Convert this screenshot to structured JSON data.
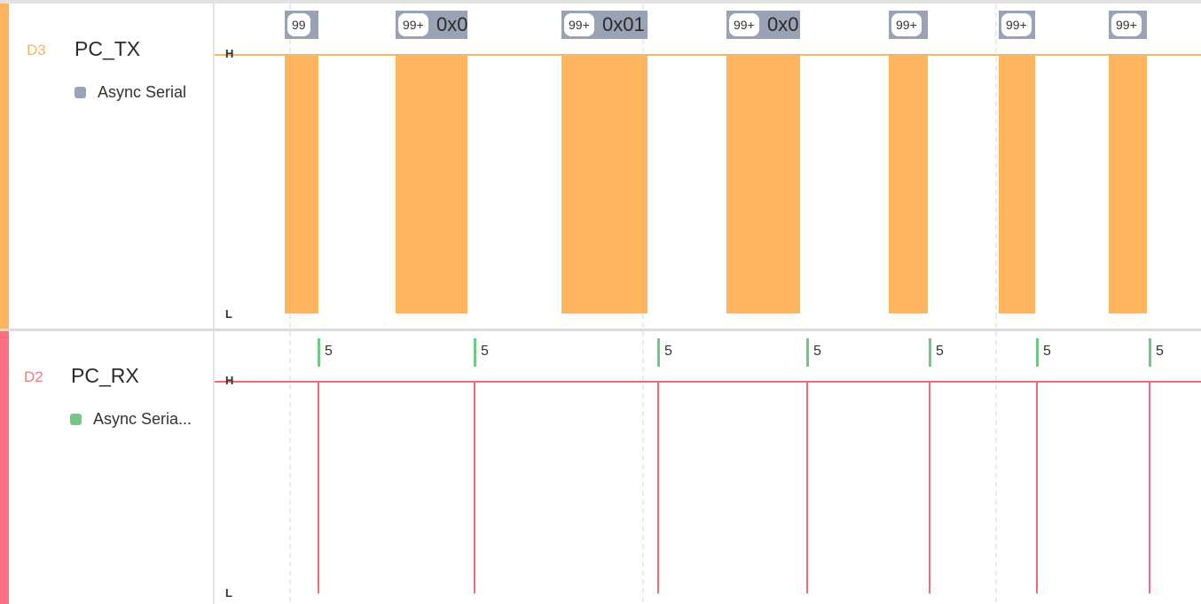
{
  "channels": [
    {
      "id": "D3",
      "name": "PC_TX",
      "color": "#ffb45d",
      "id_color": "#f7b55f",
      "analyzer": {
        "label": "Async Serial",
        "color": "#9aa3b6"
      },
      "levels": {
        "high": "H",
        "low": "L"
      },
      "frames": [
        {
          "badge": "99",
          "value": ""
        },
        {
          "badge": "99+",
          "value": "0x0"
        },
        {
          "badge": "99+",
          "value": "0x01"
        },
        {
          "badge": "99+",
          "value": "0x0"
        },
        {
          "badge": "99+",
          "value": ""
        },
        {
          "badge": "99+",
          "value": ""
        },
        {
          "badge": "99+",
          "value": ""
        }
      ]
    },
    {
      "id": "D2",
      "name": "PC_RX",
      "color": "#ff6f7d",
      "id_color": "#f07b86",
      "analyzer": {
        "label": "Async Seria...",
        "color": "#74c788"
      },
      "levels": {
        "high": "H",
        "low": "L"
      },
      "markers": [
        {
          "value": "5"
        },
        {
          "value": "5"
        },
        {
          "value": "5"
        },
        {
          "value": "5"
        },
        {
          "value": "5"
        },
        {
          "value": "5"
        },
        {
          "value": "5"
        }
      ]
    }
  ],
  "colors": {
    "pulse": "#ffb45d",
    "tx_line": "#f4b766",
    "rx_line": "#ee6a78",
    "rx_marker": "#6ecb83",
    "badge_bg": "#9aa3b6",
    "grid": "#d8d8d8"
  }
}
